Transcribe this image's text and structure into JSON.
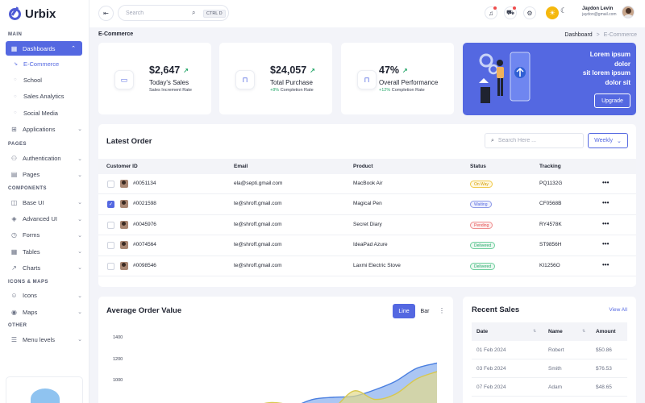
{
  "brand": {
    "name": "Urbix"
  },
  "sidebar": {
    "sections": [
      {
        "title": "MAIN"
      },
      {
        "title": "PAGES"
      },
      {
        "title": "COMPONENTS"
      },
      {
        "title": "ICONS & MAPS"
      },
      {
        "title": "OTHER"
      }
    ],
    "dashboards": {
      "label": "Dashboards",
      "icon": "grid-icon",
      "expanded": true
    },
    "dashboard_sub": [
      "E-Commerce",
      "School",
      "Sales Analytics",
      "Social Media"
    ],
    "applications": "Applications",
    "pages_items": [
      "Authentication",
      "Pages"
    ],
    "components_items": [
      "Base UI",
      "Advanced UI",
      "Forms",
      "Tables",
      "Charts"
    ],
    "icons_items": [
      "Icons",
      "Maps"
    ],
    "other_items": [
      "Menu levels"
    ]
  },
  "topbar": {
    "search_placeholder": "Search",
    "shortcut": "CTRL D",
    "user_name": "Jaydon Levin",
    "user_email": "jaydon@gmail.com"
  },
  "breadcrumb": {
    "page_title": "E-Commerce",
    "root": "Dashboard",
    "separator": ">",
    "current": "E-Commerce"
  },
  "stats": [
    {
      "value": "$2,647",
      "label": "Today's Sales",
      "change": "",
      "sub": "Sales Increment Rate",
      "icon": "folder-icon"
    },
    {
      "value": "$24,057",
      "label": "Total Purchase",
      "change": "+8%",
      "sub": "Completion Rate",
      "icon": "bookmark-icon"
    },
    {
      "value": "47%",
      "label": "Overall Performance",
      "change": "+12%",
      "sub": "Completion Rate",
      "icon": "bookmark-icon"
    }
  ],
  "promo": {
    "line1": "Lorem ipsum",
    "line2": "dolor",
    "line3": "sit lorem ipsum",
    "line4": "dolor sit",
    "button": "Upgrade"
  },
  "orders": {
    "title": "Latest Order",
    "search_placeholder": "Search Here ...",
    "filter": "Weekly",
    "columns": [
      "Customer ID",
      "Email",
      "Product",
      "Status",
      "Tracking"
    ],
    "rows": [
      {
        "id": "#0051134",
        "email": "ela@septi.gmail.com",
        "product": "MacBook Air",
        "status": "On Way",
        "status_kind": "onway",
        "tracking": "PQ1132G",
        "checked": false
      },
      {
        "id": "#0021598",
        "email": "te@shroff.gmail.com",
        "product": "Magical Pen",
        "status": "Waiting",
        "status_kind": "waiting",
        "tracking": "CF0568B",
        "checked": true
      },
      {
        "id": "#0045976",
        "email": "te@shroff.gmail.com",
        "product": "Secret Diary",
        "status": "Pending",
        "status_kind": "pending",
        "tracking": "RY4578K",
        "checked": false
      },
      {
        "id": "#0074564",
        "email": "te@shroff.gmail.com",
        "product": "IdeaPad Azure",
        "status": "Delivered",
        "status_kind": "delivered",
        "tracking": "ST9856H",
        "checked": false
      },
      {
        "id": "#0098546",
        "email": "te@shroff.gmail.com",
        "product": "Laxmi Electric Stove",
        "status": "Delivered",
        "status_kind": "delivered",
        "tracking": "KI1256O",
        "checked": false
      }
    ],
    "row_action": "•••"
  },
  "aov": {
    "title": "Average Order Value",
    "tab_line": "Line",
    "tab_bar": "Bar",
    "more": "⋮"
  },
  "chart_data": {
    "type": "area",
    "ylim": [
      0,
      1400
    ],
    "yticks": [
      1400,
      1200,
      1000
    ],
    "x": [
      0,
      1,
      2,
      3,
      4,
      5,
      6,
      7,
      8,
      9,
      10,
      11,
      12,
      13,
      14,
      15
    ],
    "series": [
      {
        "color": "#8fb3ef",
        "values": [
          760,
          740,
          710,
          720,
          730,
          740,
          765,
          740,
          760,
          830,
          850,
          860,
          920,
          1000,
          1120,
          1170
        ]
      },
      {
        "color": "#e2da8a",
        "values": [
          740,
          760,
          720,
          690,
          680,
          700,
          760,
          800,
          770,
          690,
          750,
          910,
          830,
          880,
          1020,
          1090
        ]
      }
    ]
  },
  "sales": {
    "title": "Recent Sales",
    "view_all": "View All",
    "columns": [
      "Date",
      "Name",
      "Amount"
    ],
    "rows": [
      {
        "date": "01 Feb 2024",
        "name": "Robert",
        "amount": "$50.86"
      },
      {
        "date": "03 Feb 2024",
        "name": "Smith",
        "amount": "$76.53"
      },
      {
        "date": "07 Feb 2024",
        "name": "Adam",
        "amount": "$48.65"
      }
    ]
  },
  "colors": {
    "accent": "#5468e1",
    "success": "#28a86b",
    "warning": "#f5b80d",
    "danger": "#e24d4d"
  }
}
